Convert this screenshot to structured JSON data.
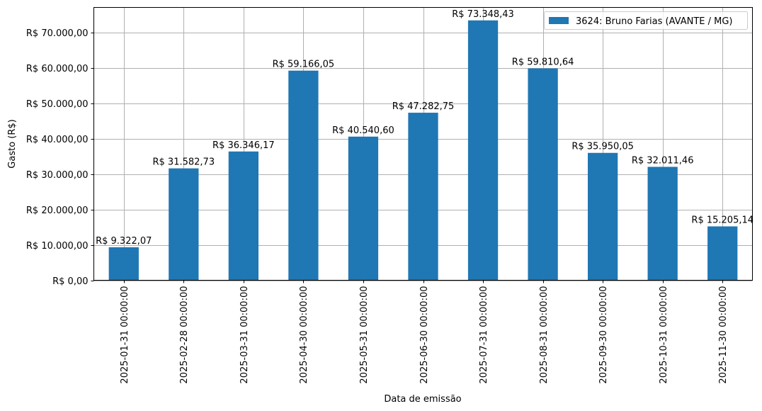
{
  "chart_data": {
    "type": "bar",
    "title": "",
    "xlabel": "Data de emissão",
    "ylabel": "Gasto (R$)",
    "ylim": [
      0,
      77000
    ],
    "grid": true,
    "legend_position": "upper right",
    "categories": [
      "2025-01-31 00:00:00",
      "2025-02-28 00:00:00",
      "2025-03-31 00:00:00",
      "2025-04-30 00:00:00",
      "2025-05-31 00:00:00",
      "2025-06-30 00:00:00",
      "2025-07-31 00:00:00",
      "2025-08-31 00:00:00",
      "2025-09-30 00:00:00",
      "2025-10-31 00:00:00",
      "2025-11-30 00:00:00"
    ],
    "series": [
      {
        "name": "3624: Bruno Farias (AVANTE / MG)",
        "color": "#1f77b4",
        "values": [
          9322.07,
          31582.73,
          36346.17,
          59166.05,
          40540.6,
          47282.75,
          73348.43,
          59810.64,
          35950.05,
          32011.46,
          15205.14
        ],
        "labels": [
          "R$ 9.322,07",
          "R$ 31.582,73",
          "R$ 36.346,17",
          "R$ 59.166,05",
          "R$ 40.540,60",
          "R$ 47.282,75",
          "R$ 73.348,43",
          "R$ 59.810,64",
          "R$ 35.950,05",
          "R$ 32.011,46",
          "R$ 15.205,14"
        ]
      }
    ],
    "yticks": [
      {
        "value": 0,
        "label": "R$ 0,00"
      },
      {
        "value": 10000,
        "label": "R$ 10.000,00"
      },
      {
        "value": 20000,
        "label": "R$ 20.000,00"
      },
      {
        "value": 30000,
        "label": "R$ 30.000,00"
      },
      {
        "value": 40000,
        "label": "R$ 40.000,00"
      },
      {
        "value": 50000,
        "label": "R$ 50.000,00"
      },
      {
        "value": 60000,
        "label": "R$ 60.000,00"
      },
      {
        "value": 70000,
        "label": "R$ 70.000,00"
      }
    ]
  }
}
